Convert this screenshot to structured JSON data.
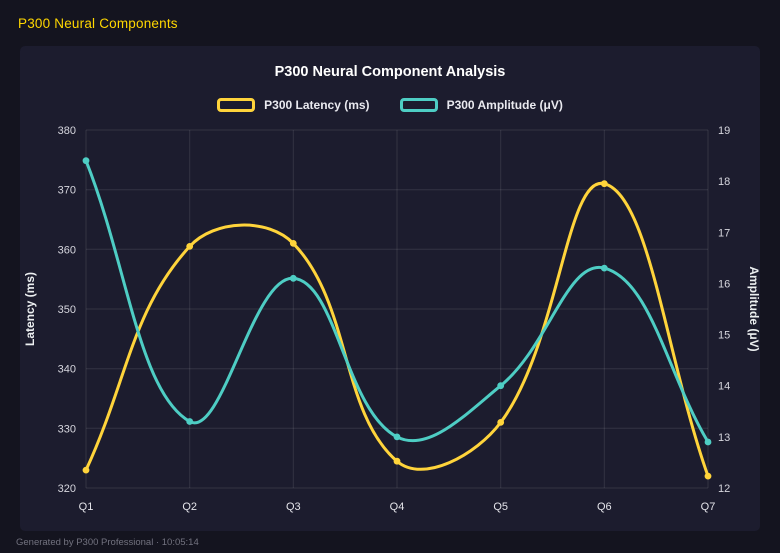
{
  "header": {
    "title": "P300 Neural Components"
  },
  "chart": {
    "title": "P300 Neural Component Analysis"
  },
  "footer": {
    "text": "Generated by P300 Professional · 10:05:14"
  },
  "colors": {
    "accent_yellow": "#ffd43b",
    "accent_teal": "#4ecdc4",
    "header_yellow": "#ffd700"
  },
  "chart_data": {
    "type": "line",
    "title": "P300 Neural Component Analysis",
    "categories": [
      "Q1",
      "Q2",
      "Q3",
      "Q4",
      "Q5",
      "Q6",
      "Q7"
    ],
    "series": [
      {
        "name": "P300 Latency (ms)",
        "axis": "left",
        "color": "#ffd43b",
        "values": [
          323,
          360.5,
          361,
          324.5,
          331,
          371,
          322
        ]
      },
      {
        "name": "P300 Amplitude (μV)",
        "axis": "right",
        "color": "#4ecdc4",
        "values": [
          18.4,
          13.3,
          16.1,
          13.0,
          14.0,
          16.3,
          12.9
        ]
      }
    ],
    "left_axis": {
      "label": "Latency (ms)",
      "min": 320,
      "max": 380,
      "step": 10
    },
    "right_axis": {
      "label": "Amplitude (μV)",
      "min": 12,
      "max": 19,
      "step": 1
    },
    "grid": true,
    "legend_position": "top",
    "line_tension": 0.4
  }
}
